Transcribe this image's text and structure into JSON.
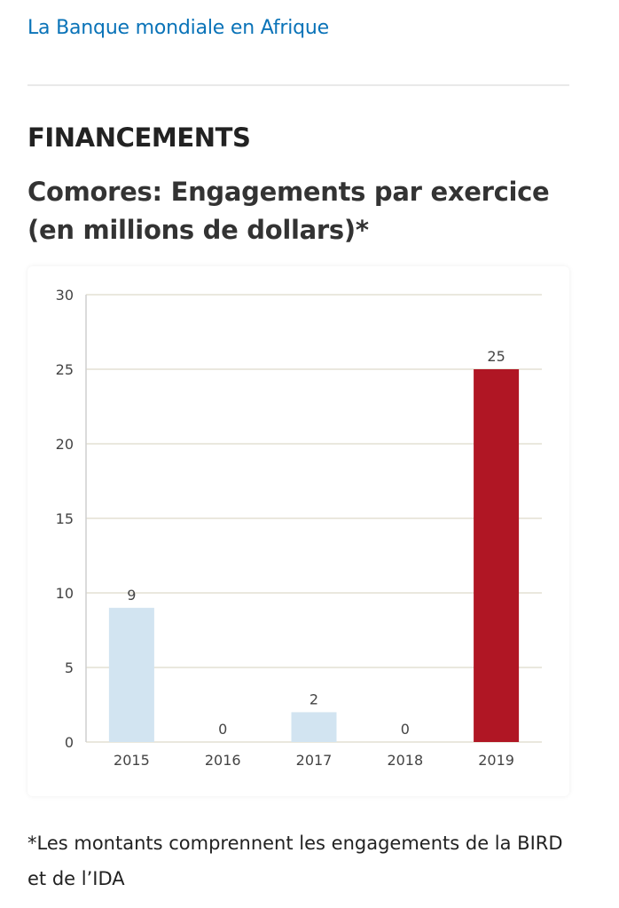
{
  "header": {
    "link_text": "La Banque mondiale en Afrique"
  },
  "section": {
    "heading": "FINANCEMENTS"
  },
  "chart_title": "Comores: Engagements par exercice (en millions de dollars)*",
  "footnote": "*Les montants comprennent les engagements de la BIRD et de l’IDA",
  "colors": {
    "link": "#0a73b8",
    "bar_light": "#d2e4f1",
    "bar_highlight": "#b01624",
    "grid": "#e3e0d4"
  },
  "chart_data": {
    "type": "bar",
    "title": "Comores: Engagements par exercice (en millions de dollars)*",
    "xlabel": "",
    "ylabel": "",
    "categories": [
      "2015",
      "2016",
      "2017",
      "2018",
      "2019"
    ],
    "values": [
      9,
      0,
      2,
      0,
      25
    ],
    "data_labels": [
      "9",
      "0",
      "2",
      "0",
      "25"
    ],
    "highlighted_category": "2019",
    "ylim": [
      0,
      30
    ],
    "yticks": [
      0,
      5,
      10,
      15,
      20,
      25,
      30
    ],
    "grid": true,
    "legend": "none"
  }
}
